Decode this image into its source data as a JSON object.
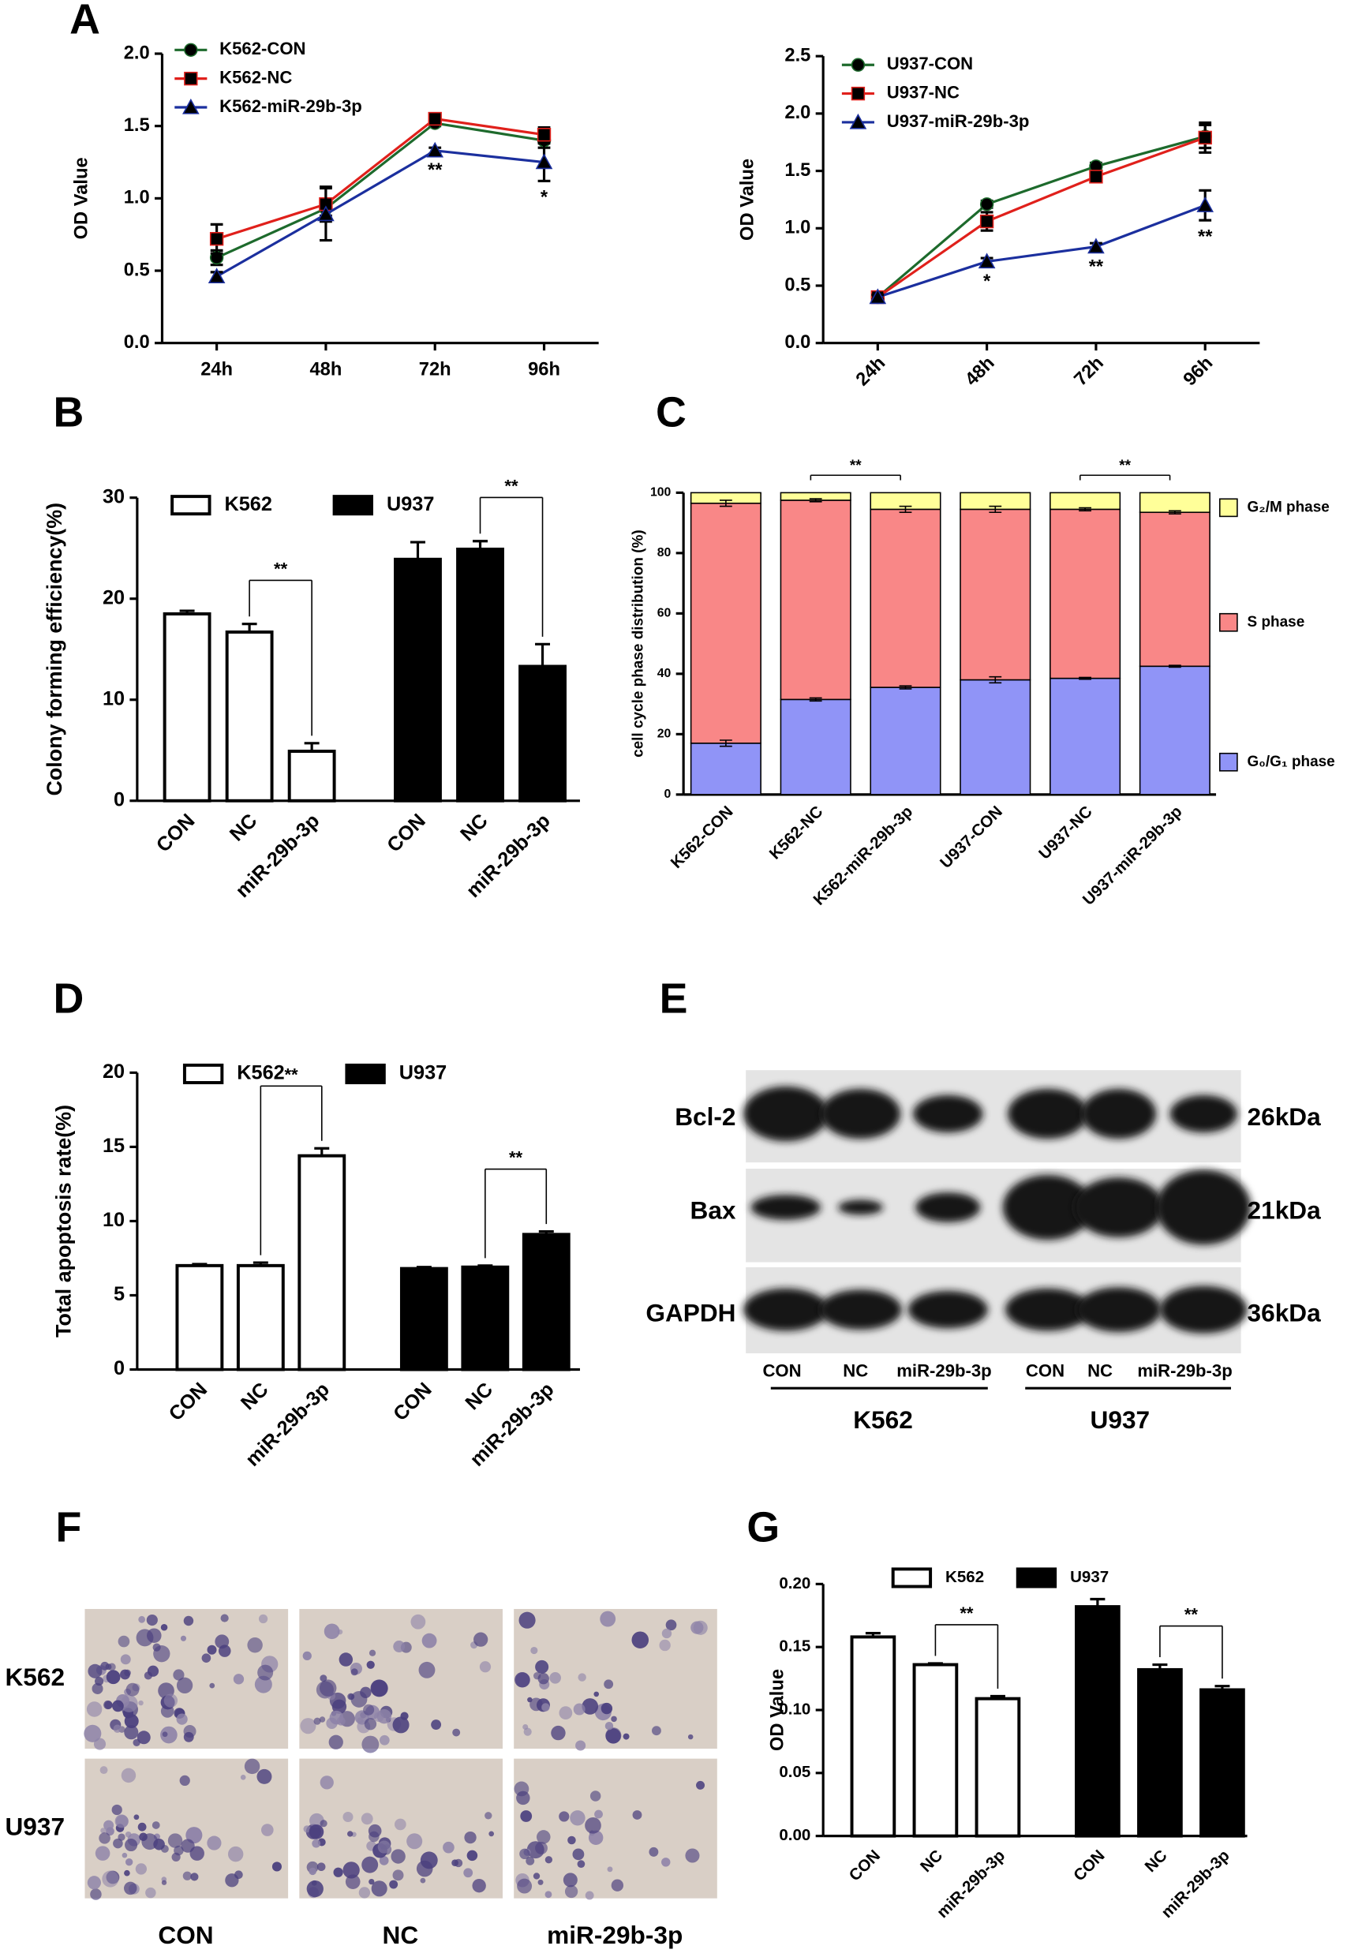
{
  "chart_data": [
    {
      "panel": "A",
      "type": "line",
      "ylabel": "OD Value",
      "categories": [
        "24h",
        "48h",
        "72h",
        "96h"
      ],
      "series": [
        {
          "name": "K562-CON",
          "color": "#1d6a2c",
          "marker": "circle",
          "values": [
            0.59,
            0.93,
            1.52,
            1.4
          ],
          "errors": [
            0.05,
            0.05,
            0.02,
            0.05
          ]
        },
        {
          "name": "K562-NC",
          "color": "#e0201b",
          "marker": "square",
          "values": [
            0.72,
            0.96,
            1.55,
            1.44
          ],
          "errors": [
            0.1,
            0.12,
            0.02,
            0.05
          ]
        },
        {
          "name": "K562-miR-29b-3p",
          "color": "#1b2f9e",
          "marker": "triangle",
          "values": [
            0.46,
            0.89,
            1.33,
            1.25
          ],
          "errors": [
            0.03,
            0.18,
            0.02,
            0.13
          ],
          "annotations": [
            null,
            null,
            "**",
            "*"
          ]
        }
      ],
      "ylim": [
        0,
        2
      ],
      "yticks": [
        {
          "value": 0,
          "label": "0.0"
        },
        0.5,
        {
          "value": 1,
          "label": "1.0"
        },
        1.5,
        {
          "value": 2,
          "label": "2.0"
        }
      ]
    },
    {
      "type": "line",
      "ylabel": "OD Value",
      "categories": [
        "24h",
        "48h",
        "72h",
        "96h"
      ],
      "series": [
        {
          "name": "U937-CON",
          "color": "#1d6a2c",
          "marker": "circle",
          "values": [
            0.4,
            1.21,
            1.54,
            1.8
          ],
          "errors": [
            0.02,
            0.03,
            0.03,
            0.1
          ]
        },
        {
          "name": "U937-NC",
          "color": "#e0201b",
          "marker": "square",
          "values": [
            0.4,
            1.06,
            1.45,
            1.79
          ],
          "errors": [
            0.02,
            0.08,
            0.04,
            0.13
          ]
        },
        {
          "name": "U937-miR-29b-3p",
          "color": "#1b2f9e",
          "marker": "triangle",
          "values": [
            0.4,
            0.71,
            0.84,
            1.2
          ],
          "errors": [
            0.02,
            0.03,
            0.03,
            0.13
          ],
          "annotations": [
            null,
            "*",
            "**",
            "**"
          ]
        }
      ],
      "ylim": [
        0,
        2.5
      ],
      "yticks": [
        {
          "value": 0,
          "label": "0.0"
        },
        0.5,
        {
          "value": 1,
          "label": "1.0"
        },
        1.5,
        {
          "value": 2,
          "label": "2.0"
        },
        2.5
      ]
    },
    {
      "panel": "B",
      "type": "bar",
      "ylabel": "Colony forming efficiency(%)",
      "categories": [
        "CON",
        "NC",
        "miR-29b-3p"
      ],
      "series": [
        {
          "name": "K562",
          "color": "#ffffff",
          "values": [
            18.5,
            16.7,
            4.9
          ],
          "errors": [
            0.3,
            0.8,
            0.8
          ]
        },
        {
          "name": "U937",
          "color": "#000000",
          "values": [
            23.9,
            24.9,
            13.3
          ],
          "errors": [
            1.7,
            0.8,
            2.2
          ]
        }
      ],
      "brackets": [
        {
          "series": 0,
          "from": 1,
          "to": 2,
          "label": "**"
        },
        {
          "series": 1,
          "from": 1,
          "to": 2,
          "label": "**"
        }
      ],
      "ylim": [
        0,
        30
      ],
      "yticks": [
        0,
        10,
        20,
        30
      ]
    },
    {
      "panel": "C",
      "type": "stacked-bar",
      "ylabel": "cell cycle phase distribution (%)",
      "categories": [
        "K562-CON",
        "K562-NC",
        "K562-miR-29b-3p",
        "U937-CON",
        "U937-NC",
        "U937-miR-29b-3p"
      ],
      "series": [
        {
          "name": "G₀/G₁ phase",
          "color": "#9094f7",
          "values": [
            17,
            31.5,
            35.5,
            38,
            38.5,
            42.5
          ],
          "errors": [
            1,
            0.5,
            0.5,
            1,
            0.3,
            0.3
          ]
        },
        {
          "name": "S phase",
          "color": "#f98787",
          "values": [
            79.5,
            66,
            59,
            56.5,
            56,
            51
          ],
          "errors": [
            1,
            0.5,
            1,
            1,
            0.5,
            0.5
          ]
        },
        {
          "name": "G₂/M phase",
          "color": "#ffff99",
          "values": [
            3.5,
            2.5,
            5.5,
            5.5,
            5.5,
            6.5
          ]
        }
      ],
      "brackets": [
        {
          "from": 1,
          "to": 2,
          "label": "**"
        },
        {
          "from": 4,
          "to": 5,
          "label": "**"
        }
      ],
      "ylim": [
        0,
        100
      ],
      "yticks": [
        0,
        20,
        40,
        60,
        80,
        100
      ]
    },
    {
      "panel": "D",
      "type": "bar",
      "ylabel": "Total apoptosis rate(%)",
      "categories": [
        "CON",
        "NC",
        "miR-29b-3p"
      ],
      "series": [
        {
          "name": "K562",
          "color": "#ffffff",
          "values": [
            7.0,
            7.0,
            14.4
          ],
          "errors": [
            0.1,
            0.2,
            0.5
          ]
        },
        {
          "name": "U937",
          "color": "#000000",
          "values": [
            6.8,
            6.9,
            9.1
          ],
          "errors": [
            0.1,
            0.1,
            0.2
          ]
        }
      ],
      "brackets": [
        {
          "series": 0,
          "from": 1,
          "to": 2,
          "label": "**"
        },
        {
          "series": 1,
          "from": 1,
          "to": 2,
          "label": "**"
        }
      ],
      "ylim": [
        0,
        20
      ],
      "yticks": [
        0,
        5,
        10,
        15,
        20
      ]
    },
    {
      "panel": "G",
      "type": "bar",
      "ylabel": "OD Value",
      "categories": [
        "CON",
        "NC",
        "miR-29b-3p"
      ],
      "series": [
        {
          "name": "K562",
          "color": "#ffffff",
          "values": [
            0.158,
            0.136,
            0.109
          ],
          "errors": [
            0.003,
            0.001,
            0.002
          ]
        },
        {
          "name": "U937",
          "color": "#000000",
          "values": [
            0.182,
            0.132,
            0.116
          ],
          "errors": [
            0.006,
            0.004,
            0.003
          ]
        }
      ],
      "brackets": [
        {
          "series": 0,
          "from": 1,
          "to": 2,
          "label": "**"
        },
        {
          "series": 1,
          "from": 1,
          "to": 2,
          "label": "**"
        }
      ],
      "ylim": [
        0,
        0.2
      ],
      "yticks": [
        {
          "value": 0,
          "label": "0.00"
        },
        0.05,
        {
          "value": 0.1,
          "label": "0.10"
        },
        0.15,
        {
          "value": 0.2,
          "label": "0.20"
        }
      ]
    }
  ],
  "blot": {
    "panel": "E",
    "proteins": [
      "Bcl-2",
      "Bax",
      "GAPDH"
    ],
    "sizes": [
      "26kDa",
      "21kDa",
      "36kDa"
    ],
    "lanes": [
      "CON",
      "NC",
      "miR-29b-3p",
      "CON",
      "NC",
      "miR-29b-3p"
    ],
    "groups": [
      "K562",
      "U937"
    ]
  },
  "micrographs": {
    "panel": "F",
    "rows": [
      "K562",
      "U937"
    ],
    "columns": [
      "CON",
      "NC",
      "miR-29b-3p"
    ]
  }
}
